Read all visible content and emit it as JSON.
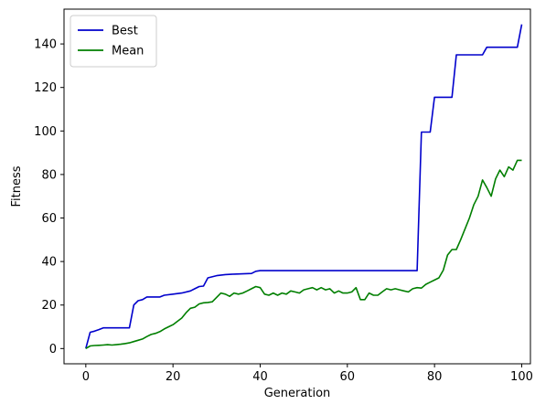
{
  "chart_data": {
    "type": "line",
    "title": "",
    "xlabel": "Generation",
    "ylabel": "Fitness",
    "xlim": [
      -5,
      102
    ],
    "ylim": [
      -7,
      156
    ],
    "xticks": [
      0,
      20,
      40,
      60,
      80,
      100
    ],
    "yticks": [
      0,
      20,
      40,
      60,
      80,
      100,
      120,
      140
    ],
    "grid": false,
    "legend_position": "top-left",
    "series": [
      {
        "name": "Best",
        "color": "#0000cc",
        "x": [
          0,
          1,
          2,
          3,
          4,
          10,
          11,
          12,
          13,
          14,
          17,
          18,
          20,
          22,
          24,
          25,
          26,
          27,
          28,
          30,
          32,
          34,
          38,
          39,
          40,
          75,
          76,
          77,
          79,
          80,
          84,
          85,
          91,
          92,
          99,
          100
        ],
        "y": [
          0,
          7.5,
          8,
          8.7,
          9.5,
          9.5,
          20,
          22,
          22.5,
          23.7,
          23.7,
          24.5,
          25,
          25.5,
          26.5,
          27.5,
          28.5,
          28.7,
          32.5,
          33.5,
          34,
          34.2,
          34.5,
          35.5,
          35.8,
          35.8,
          35.8,
          99.5,
          99.5,
          115.5,
          115.5,
          135,
          135,
          138.5,
          138.5,
          149
        ]
      },
      {
        "name": "Mean",
        "color": "#007f00",
        "x": [
          0,
          1,
          2,
          3,
          4,
          5,
          6,
          7,
          8,
          9,
          10,
          11,
          12,
          13,
          14,
          15,
          16,
          17,
          18,
          19,
          20,
          21,
          22,
          23,
          24,
          25,
          26,
          27,
          28,
          29,
          30,
          31,
          32,
          33,
          34,
          35,
          36,
          37,
          38,
          39,
          40,
          41,
          42,
          43,
          44,
          45,
          46,
          47,
          48,
          49,
          50,
          51,
          52,
          53,
          54,
          55,
          56,
          57,
          58,
          59,
          60,
          61,
          62,
          63,
          64,
          65,
          66,
          67,
          68,
          69,
          70,
          71,
          72,
          73,
          74,
          75,
          76,
          77,
          78,
          79,
          80,
          81,
          82,
          83,
          84,
          85,
          86,
          87,
          88,
          89,
          90,
          91,
          92,
          93,
          94,
          95,
          96,
          97,
          98,
          99,
          100
        ],
        "y": [
          0,
          1.2,
          1.4,
          1.5,
          1.6,
          1.8,
          1.6,
          1.8,
          2,
          2.3,
          2.6,
          3.2,
          3.8,
          4.4,
          5.5,
          6.5,
          7,
          7.8,
          9,
          10,
          11,
          12.5,
          14,
          16.5,
          18.5,
          19,
          20.5,
          21,
          21.2,
          21.5,
          23.5,
          25.5,
          25,
          24,
          25.5,
          25,
          25.5,
          26.5,
          27.5,
          28.5,
          28,
          25,
          24.5,
          25.5,
          24.5,
          25.5,
          25,
          26.5,
          26,
          25.5,
          27,
          27.5,
          28,
          27,
          28,
          27,
          27.5,
          25.5,
          26.5,
          25.5,
          25.5,
          26,
          28,
          22.5,
          22.5,
          25.5,
          24.5,
          24.5,
          26,
          27.5,
          27,
          27.5,
          27,
          26.5,
          26,
          27.5,
          28,
          27.8,
          29.5,
          30.5,
          31.5,
          32.5,
          36,
          43,
          45.5,
          45.5,
          50,
          55,
          60,
          66,
          70,
          77.5,
          74,
          70,
          78,
          82,
          79,
          83.5,
          82,
          86.5,
          86.5
        ]
      }
    ]
  }
}
